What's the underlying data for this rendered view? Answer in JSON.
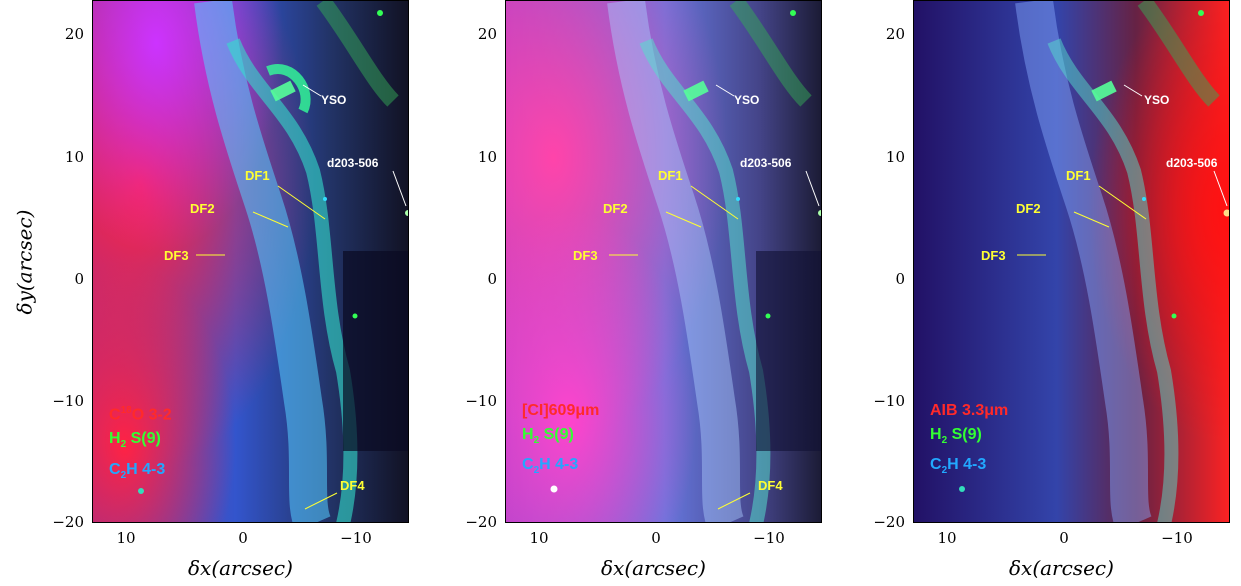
{
  "axes": {
    "xlabel": "δx(arcsec)",
    "ylabel": "δy(arcsec)",
    "x_ticks": [
      "10",
      "0",
      "−10"
    ],
    "y_ticks": [
      "20",
      "10",
      "0",
      "−10",
      "−20"
    ]
  },
  "annotations": {
    "yso": "YSO",
    "d203": "d203-506",
    "df1": "DF1",
    "df2": "DF2",
    "df3": "DF3",
    "df4": "DF4"
  },
  "panels": [
    {
      "legend": [
        {
          "pre": "C",
          "sup": "18",
          "post": "O 3-2",
          "color": "#ff2a2a"
        },
        {
          "pre": "H",
          "sub": "2",
          "post": " S(9)",
          "color": "#33ff33"
        },
        {
          "pre": "C",
          "sub": "2",
          "post": "H 4-3",
          "color": "#22a8ff"
        }
      ]
    },
    {
      "legend": [
        {
          "pre": "[CI]609μm",
          "color": "#ff2a2a"
        },
        {
          "pre": "H",
          "sub": "2",
          "post": " S(9)",
          "color": "#33ff33"
        },
        {
          "pre": "C",
          "sub": "2",
          "post": "H 4-3",
          "color": "#22a8ff"
        }
      ]
    },
    {
      "legend": [
        {
          "pre": "AIB 3.3μm",
          "color": "#ff2a2a"
        },
        {
          "pre": "H",
          "sub": "2",
          "post": " S(9)",
          "color": "#33ff33"
        },
        {
          "pre": "C",
          "sub": "2",
          "post": "H 4-3",
          "color": "#22a8ff"
        }
      ]
    }
  ],
  "colors": {
    "red_channel": "#ff2a2a",
    "green_channel": "#33ff33",
    "blue_channel": "#22a8ff",
    "annotation_yellow": "#ffff33",
    "annotation_white": "#ffffff"
  }
}
